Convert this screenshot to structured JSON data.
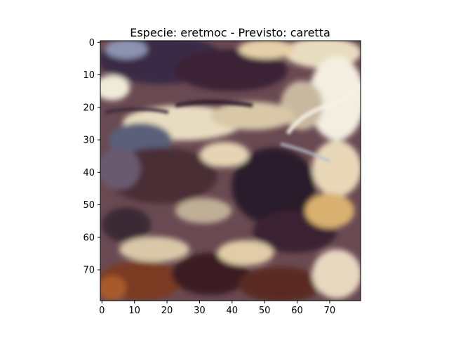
{
  "figure": {
    "title": "Especie: eretmoc - Previsto: caretta",
    "image_description_tag": "turtle-shell-scute-closeup",
    "image_grid": {
      "rows": 80,
      "cols": 80
    },
    "x_ticks": [
      {
        "value": 0,
        "label": "0"
      },
      {
        "value": 10,
        "label": "10"
      },
      {
        "value": 20,
        "label": "20"
      },
      {
        "value": 30,
        "label": "30"
      },
      {
        "value": 40,
        "label": "40"
      },
      {
        "value": 50,
        "label": "50"
      },
      {
        "value": 60,
        "label": "60"
      },
      {
        "value": 70,
        "label": "70"
      }
    ],
    "y_ticks": [
      {
        "value": 0,
        "label": "0"
      },
      {
        "value": 10,
        "label": "10"
      },
      {
        "value": 20,
        "label": "20"
      },
      {
        "value": 30,
        "label": "30"
      },
      {
        "value": 40,
        "label": "40"
      },
      {
        "value": 50,
        "label": "50"
      },
      {
        "value": 60,
        "label": "60"
      },
      {
        "value": 70,
        "label": "70"
      }
    ],
    "colors": {
      "dark_brown": "#3b2230",
      "mid_brown": "#6a3a2a",
      "rust": "#8a4a2a",
      "cream": "#e8dcc0",
      "pale": "#f3eee0",
      "slate": "#5a5f7a",
      "blue_gray": "#8c93b0",
      "gold": "#d8b070",
      "axis": "#000000"
    }
  }
}
